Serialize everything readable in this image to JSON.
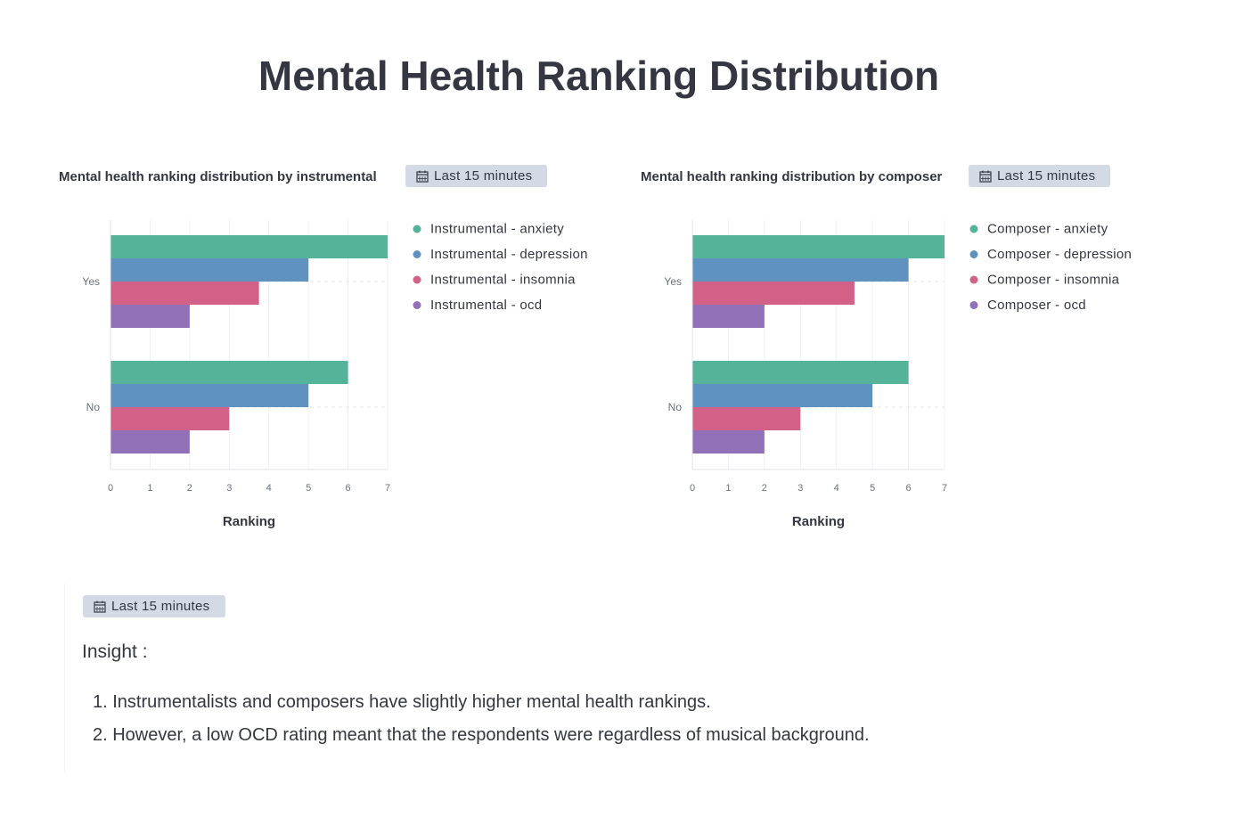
{
  "page": {
    "title": "Mental Health Ranking Distribution",
    "time_badge_label": "Last 15 minutes"
  },
  "panels": [
    {
      "title": "Mental health ranking distribution by instrumental",
      "time_label": "Last 15 minutes"
    },
    {
      "title": "Mental health ranking distribution by composer",
      "time_label": "Last 15 minutes"
    }
  ],
  "colors": {
    "anxiety": "#54b399",
    "depression": "#6092c0",
    "insomnia": "#d36086",
    "ocd": "#9170b8"
  },
  "chart_data": [
    {
      "type": "bar",
      "orientation": "horizontal",
      "categories": [
        "Yes",
        "No"
      ],
      "series": [
        {
          "name": "Instrumental - anxiety",
          "values": [
            7,
            6
          ]
        },
        {
          "name": "Instrumental - depression",
          "values": [
            5,
            5
          ]
        },
        {
          "name": "Instrumental - insomnia",
          "values": [
            3.75,
            3
          ]
        },
        {
          "name": "Instrumental - ocd",
          "values": [
            2,
            2
          ]
        }
      ],
      "xlabel": "Ranking",
      "ylabel": "",
      "xlim": [
        0,
        7
      ],
      "xticks": [
        "0",
        "1",
        "2",
        "3",
        "4",
        "5",
        "6",
        "7"
      ],
      "grid": true,
      "legend_position": "right"
    },
    {
      "type": "bar",
      "orientation": "horizontal",
      "categories": [
        "Yes",
        "No"
      ],
      "series": [
        {
          "name": "Composer - anxiety",
          "values": [
            7,
            6
          ]
        },
        {
          "name": "Composer - depression",
          "values": [
            6,
            5
          ]
        },
        {
          "name": "Composer - insomnia",
          "values": [
            4.5,
            3
          ]
        },
        {
          "name": "Composer - ocd",
          "values": [
            2,
            2
          ]
        }
      ],
      "xlabel": "Ranking",
      "ylabel": "",
      "xlim": [
        0,
        7
      ],
      "xticks": [
        "0",
        "1",
        "2",
        "3",
        "4",
        "5",
        "6",
        "7"
      ],
      "grid": true,
      "legend_position": "right"
    }
  ],
  "insight": {
    "label": "Insight :",
    "items": [
      "1. Instrumentalists and composers have slightly higher mental health rankings.",
      "2. However, a low OCD rating meant that the respondents were regardless of musical background."
    ]
  }
}
